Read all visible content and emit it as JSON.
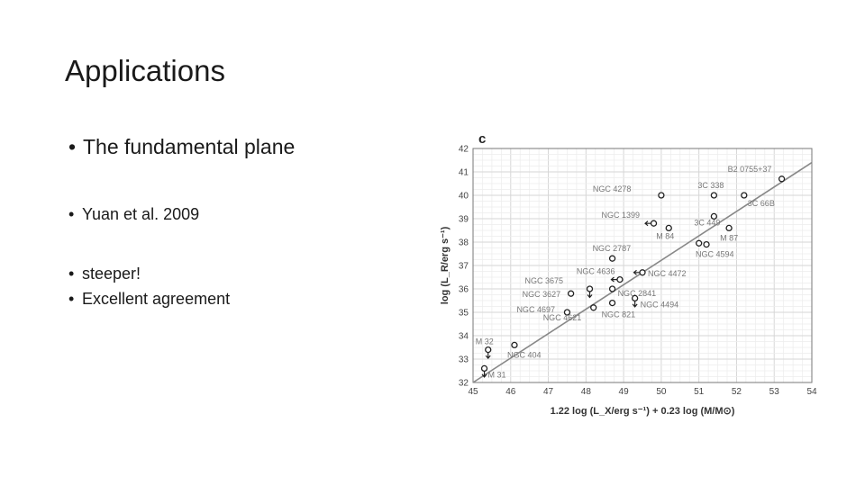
{
  "slide": {
    "title": "Applications",
    "bullets": [
      "The fundamental plane",
      "Yuan et al. 2009",
      "steeper!",
      "Excellent agreement"
    ],
    "bullet_symbol": "•"
  },
  "chart_data": {
    "type": "scatter",
    "panel_label": "c",
    "title": "",
    "xlabel": "1.22 log (L_X/erg s⁻¹) + 0.23 log (M/M⊙)",
    "ylabel": "log (L_R/erg s⁻¹)",
    "xlim": [
      45,
      54
    ],
    "ylim": [
      32,
      42
    ],
    "xticks": [
      "45",
      "46",
      "47",
      "48",
      "49",
      "50",
      "51",
      "52",
      "53",
      "54"
    ],
    "yticks": [
      "32",
      "33",
      "34",
      "35",
      "36",
      "37",
      "38",
      "39",
      "40",
      "41",
      "42"
    ],
    "grid": true,
    "fit_line": {
      "x": [
        45,
        54
      ],
      "y": [
        32.0,
        41.4
      ]
    },
    "points": [
      {
        "label": "B2 0755+37",
        "x": 53.2,
        "y": 40.7,
        "arrow": ""
      },
      {
        "label": "3C 66B",
        "x": 52.2,
        "y": 40.0,
        "arrow": ""
      },
      {
        "label": "3C 338",
        "x": 51.4,
        "y": 40.0,
        "arrow": ""
      },
      {
        "label": "3C 449",
        "x": 51.4,
        "y": 39.1,
        "arrow": ""
      },
      {
        "label": "M 87",
        "x": 51.8,
        "y": 38.6,
        "arrow": ""
      },
      {
        "label": "NGC 4594",
        "x": 51.2,
        "y": 37.9,
        "arrow": ""
      },
      {
        "label": "",
        "x": 51.0,
        "y": 37.95,
        "arrow": ""
      },
      {
        "label": "M 84",
        "x": 50.2,
        "y": 38.6,
        "arrow": ""
      },
      {
        "label": "NGC 4278",
        "x": 50.0,
        "y": 40.0,
        "arrow": ""
      },
      {
        "label": "NGC 1399",
        "x": 49.8,
        "y": 38.8,
        "arrow": "left"
      },
      {
        "label": "NGC 2787",
        "x": 48.7,
        "y": 37.3,
        "arrow": ""
      },
      {
        "label": "NGC 4472",
        "x": 49.5,
        "y": 36.7,
        "arrow": "left"
      },
      {
        "label": "NGC 4636",
        "x": 48.9,
        "y": 36.4,
        "arrow": "left"
      },
      {
        "label": "NGC 2841",
        "x": 48.7,
        "y": 36.0,
        "arrow": ""
      },
      {
        "label": "NGC 4494",
        "x": 49.3,
        "y": 35.6,
        "arrow": "down"
      },
      {
        "label": "NGC 3675",
        "x": 48.1,
        "y": 36.0,
        "arrow": "down"
      },
      {
        "label": "NGC 3627",
        "x": 47.6,
        "y": 35.8,
        "arrow": ""
      },
      {
        "label": "NGC 4697",
        "x": 47.5,
        "y": 35.0,
        "arrow": ""
      },
      {
        "label": "NGC 4621",
        "x": 48.2,
        "y": 35.2,
        "arrow": ""
      },
      {
        "label": "NGC 821",
        "x": 48.7,
        "y": 35.4,
        "arrow": ""
      },
      {
        "label": "NGC 404",
        "x": 46.1,
        "y": 33.6,
        "arrow": ""
      },
      {
        "label": "M 32",
        "x": 45.4,
        "y": 33.4,
        "arrow": "down"
      },
      {
        "label": "M 31",
        "x": 45.3,
        "y": 32.6,
        "arrow": "down"
      }
    ],
    "legend": ""
  }
}
